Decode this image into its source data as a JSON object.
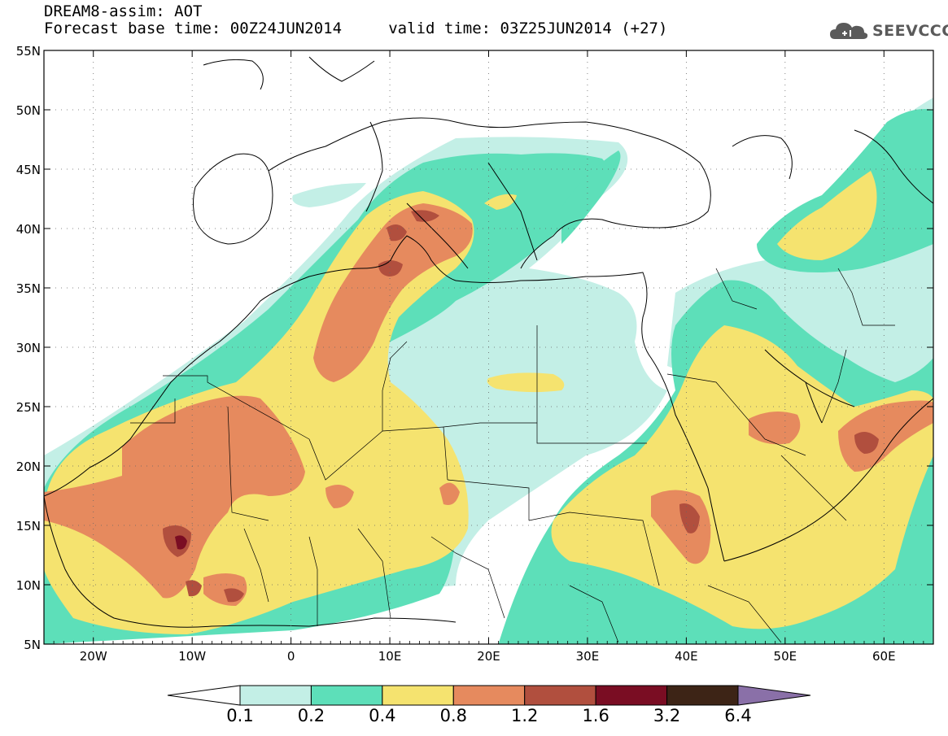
{
  "header": {
    "line1": "DREAM8-assim: AOT",
    "line2": "Forecast base time: 00Z24JUN2014     valid time: 03Z25JUN2014 (+27)",
    "logo_text": "SEEVCCC"
  },
  "map": {
    "lon_range": [
      -25,
      65
    ],
    "lat_range": [
      5,
      55
    ],
    "lat_ticks": [
      {
        "value": 55,
        "label": "55N"
      },
      {
        "value": 50,
        "label": "50N"
      },
      {
        "value": 45,
        "label": "45N"
      },
      {
        "value": 40,
        "label": "40N"
      },
      {
        "value": 35,
        "label": "35N"
      },
      {
        "value": 30,
        "label": "30N"
      },
      {
        "value": 25,
        "label": "25N"
      },
      {
        "value": 20,
        "label": "20N"
      },
      {
        "value": 15,
        "label": "15N"
      },
      {
        "value": 10,
        "label": "10N"
      },
      {
        "value": 5,
        "label": "5N"
      }
    ],
    "lon_ticks": [
      {
        "value": -20,
        "label": "20W"
      },
      {
        "value": -10,
        "label": "10W"
      },
      {
        "value": 0,
        "label": "0"
      },
      {
        "value": 10,
        "label": "10E"
      },
      {
        "value": 20,
        "label": "20E"
      },
      {
        "value": 30,
        "label": "30E"
      },
      {
        "value": 40,
        "label": "40E"
      },
      {
        "value": 50,
        "label": "50E"
      },
      {
        "value": 60,
        "label": "60E"
      }
    ]
  },
  "colorbar": {
    "levels": [
      "0.1",
      "0.2",
      "0.4",
      "0.8",
      "1.2",
      "1.6",
      "3.2",
      "6.4"
    ],
    "colors": [
      "#ffffff",
      "#c3efe6",
      "#5ddfb9",
      "#f5e36f",
      "#e68a5e",
      "#b14f3e",
      "#7a0d23",
      "#3d2416",
      "#8a70a8"
    ]
  }
}
